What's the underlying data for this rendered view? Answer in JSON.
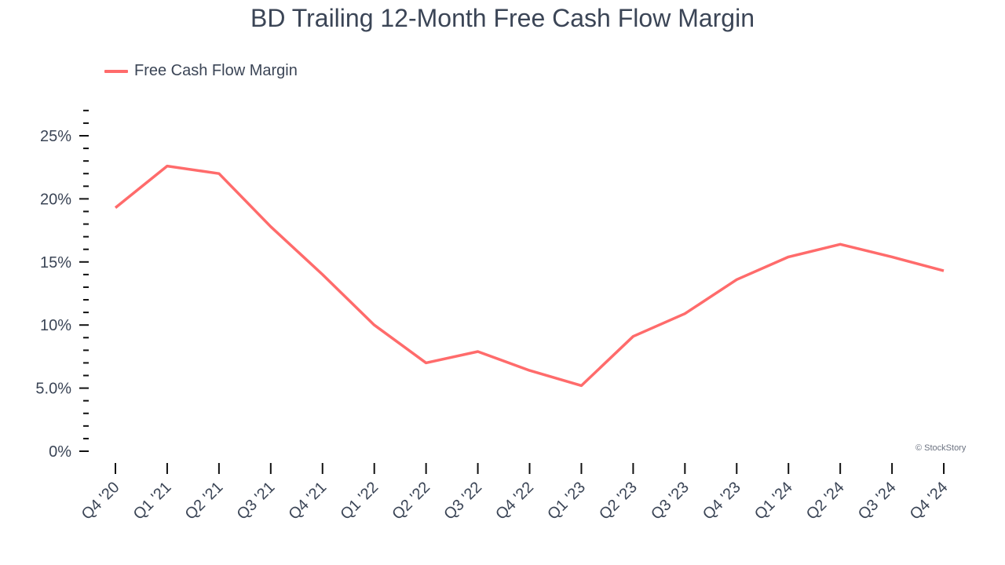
{
  "title": "BD Trailing 12-Month Free Cash Flow Margin",
  "legend": {
    "label": "Free Cash Flow Margin",
    "color": "#ff6b6b"
  },
  "credit": "© StockStory",
  "chart_data": {
    "type": "line",
    "title": "BD Trailing 12-Month Free Cash Flow Margin",
    "xlabel": "",
    "ylabel": "",
    "ylim": [
      0,
      27
    ],
    "yticks": [
      "0%",
      "5.0%",
      "10%",
      "15%",
      "20%",
      "25%"
    ],
    "grid": false,
    "legend_position": "top-left",
    "categories": [
      "Q4 '20",
      "Q1 '21",
      "Q2 '21",
      "Q3 '21",
      "Q4 '21",
      "Q1 '22",
      "Q2 '22",
      "Q3 '22",
      "Q4 '22",
      "Q1 '23",
      "Q2 '23",
      "Q3 '23",
      "Q4 '23",
      "Q1 '24",
      "Q2 '24",
      "Q3 '24",
      "Q4 '24"
    ],
    "series": [
      {
        "name": "Free Cash Flow Margin",
        "color": "#ff6b6b",
        "values": [
          19.3,
          22.6,
          22.0,
          17.8,
          14.0,
          10.0,
          7.0,
          7.9,
          6.4,
          5.2,
          9.1,
          10.9,
          13.6,
          15.4,
          16.4,
          15.4,
          14.3
        ]
      }
    ]
  }
}
